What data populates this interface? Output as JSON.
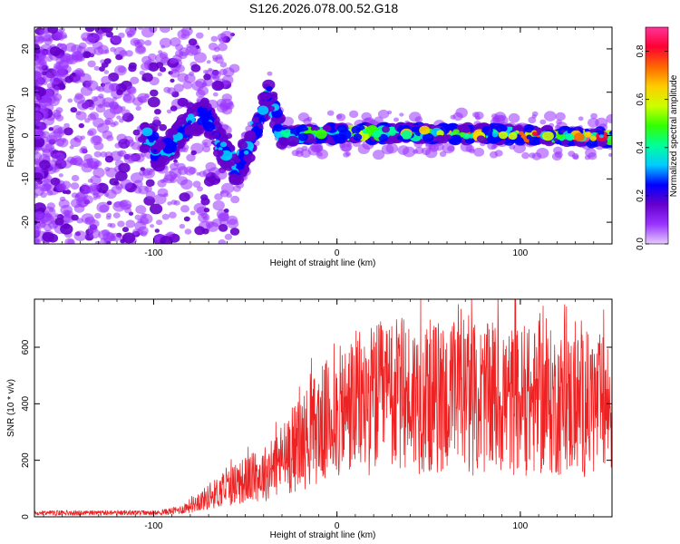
{
  "title": "S126.2026.078.00.52.G18",
  "chart_data": [
    {
      "type": "heatmap",
      "name": "spectrogram",
      "xlabel": "Height of straight line (km)",
      "ylabel": "Frequency (Hz)",
      "xlim": [
        -165,
        150
      ],
      "ylim": [
        -25,
        25
      ],
      "xticks": [
        -100,
        0,
        100
      ],
      "yticks": [
        -20,
        -10,
        0,
        10,
        20
      ],
      "colorbar": {
        "label": "Normalized spectral amplitude",
        "range": [
          0.0,
          0.9
        ],
        "ticks": [
          0.0,
          0.2,
          0.4,
          0.6,
          0.8
        ],
        "colors": [
          "#e6ccff",
          "#9933ff",
          "#6600cc",
          "#0000ff",
          "#00ccff",
          "#00ff99",
          "#33ff00",
          "#ccff00",
          "#ffcc00",
          "#ff6600",
          "#ff0033",
          "#ff3399"
        ]
      },
      "signal_trace": [
        {
          "x": -100,
          "y": -5
        },
        {
          "x": -90,
          "y": -2
        },
        {
          "x": -80,
          "y": 3
        },
        {
          "x": -72,
          "y": 5
        },
        {
          "x": -65,
          "y": -1
        },
        {
          "x": -55,
          "y": -8
        },
        {
          "x": -45,
          "y": 0
        },
        {
          "x": -37,
          "y": 10
        },
        {
          "x": -30,
          "y": 0
        },
        {
          "x": 0,
          "y": 0.5
        },
        {
          "x": 50,
          "y": 0.5
        },
        {
          "x": 100,
          "y": 0.2
        },
        {
          "x": 150,
          "y": -0.5
        }
      ]
    },
    {
      "type": "line",
      "name": "snr",
      "xlabel": "Height of straight line (km)",
      "ylabel": "SNR (10 * v/v)",
      "xlim": [
        -165,
        150
      ],
      "ylim": [
        0,
        770
      ],
      "xticks": [
        -100,
        0,
        100
      ],
      "yticks": [
        0,
        200,
        400,
        600
      ],
      "series_color": "#ee2222",
      "envelope": [
        {
          "x": -165,
          "y": 12
        },
        {
          "x": -100,
          "y": 12
        },
        {
          "x": -85,
          "y": 25
        },
        {
          "x": -70,
          "y": 70
        },
        {
          "x": -55,
          "y": 120
        },
        {
          "x": -40,
          "y": 150
        },
        {
          "x": -25,
          "y": 230
        },
        {
          "x": -10,
          "y": 320
        },
        {
          "x": 10,
          "y": 400
        },
        {
          "x": 30,
          "y": 430
        },
        {
          "x": 60,
          "y": 420
        },
        {
          "x": 100,
          "y": 410
        },
        {
          "x": 150,
          "y": 390
        }
      ]
    }
  ]
}
